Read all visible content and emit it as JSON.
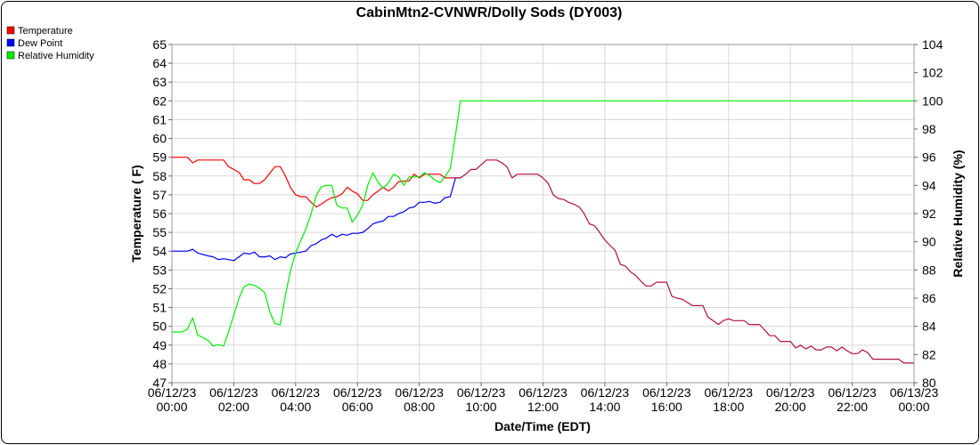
{
  "chart_data": {
    "type": "line",
    "title": "CabinMtn2-CVNWR/Dolly Sods (DY003)",
    "xlabel": "Date/Time (EDT)",
    "ylabel": "Temperature ( F)",
    "y2label": "Relative Humidity (%)",
    "ylim": [
      47,
      65
    ],
    "y2lim": [
      80,
      104
    ],
    "xlim": [
      0,
      24
    ],
    "x_ticks": [
      {
        "x": 0,
        "line1": "06/12/23",
        "line2": "00:00"
      },
      {
        "x": 2,
        "line1": "06/12/23",
        "line2": "02:00"
      },
      {
        "x": 4,
        "line1": "06/12/23",
        "line2": "04:00"
      },
      {
        "x": 6,
        "line1": "06/12/23",
        "line2": "06:00"
      },
      {
        "x": 8,
        "line1": "06/12/23",
        "line2": "08:00"
      },
      {
        "x": 10,
        "line1": "06/12/23",
        "line2": "10:00"
      },
      {
        "x": 12,
        "line1": "06/12/23",
        "line2": "12:00"
      },
      {
        "x": 14,
        "line1": "06/12/23",
        "line2": "14:00"
      },
      {
        "x": 16,
        "line1": "06/12/23",
        "line2": "16:00"
      },
      {
        "x": 18,
        "line1": "06/12/23",
        "line2": "18:00"
      },
      {
        "x": 20,
        "line1": "06/12/23",
        "line2": "20:00"
      },
      {
        "x": 22,
        "line1": "06/12/23",
        "line2": "22:00"
      },
      {
        "x": 24,
        "line1": "06/13/23",
        "line2": "00:00"
      }
    ],
    "y_ticks": [
      47,
      48,
      49,
      50,
      51,
      52,
      53,
      54,
      55,
      56,
      57,
      58,
      59,
      60,
      61,
      62,
      63,
      64,
      65
    ],
    "y2_ticks": [
      80,
      82,
      84,
      86,
      88,
      90,
      92,
      94,
      96,
      98,
      100,
      102,
      104
    ],
    "grid": true,
    "legend_position": "top-left",
    "series": [
      {
        "name": "Temperature",
        "color": "#ff0000",
        "axis": "left",
        "points": [
          [
            0,
            59
          ],
          [
            0.5,
            59
          ],
          [
            0.67,
            58.7
          ],
          [
            0.83,
            58.85
          ],
          [
            1.67,
            58.85
          ],
          [
            1.83,
            58.5
          ],
          [
            2.17,
            58.2
          ],
          [
            2.33,
            57.8
          ],
          [
            2.5,
            57.8
          ],
          [
            2.67,
            57.6
          ],
          [
            2.83,
            57.6
          ],
          [
            3,
            57.8
          ],
          [
            3.33,
            58.5
          ],
          [
            3.5,
            58.5
          ],
          [
            3.67,
            58
          ],
          [
            3.83,
            57.4
          ],
          [
            4,
            57
          ],
          [
            4.17,
            56.9
          ],
          [
            4.33,
            56.9
          ],
          [
            4.5,
            56.6
          ],
          [
            4.67,
            56.35
          ],
          [
            4.83,
            56.5
          ],
          [
            5,
            56.7
          ],
          [
            5.17,
            56.85
          ],
          [
            5.33,
            56.9
          ],
          [
            5.5,
            57.05
          ],
          [
            5.67,
            57.4
          ],
          [
            5.83,
            57.2
          ],
          [
            6,
            57.05
          ],
          [
            6.17,
            56.7
          ],
          [
            6.33,
            56.7
          ],
          [
            6.5,
            57
          ],
          [
            6.67,
            57.2
          ],
          [
            6.83,
            57.4
          ],
          [
            7,
            57.2
          ],
          [
            7.17,
            57.4
          ],
          [
            7.33,
            57.7
          ],
          [
            7.67,
            57.75
          ],
          [
            7.83,
            58.1
          ],
          [
            8,
            57.9
          ],
          [
            8.17,
            58.1
          ],
          [
            8.33,
            58.1
          ],
          [
            8.67,
            58.1
          ],
          [
            8.83,
            57.9
          ],
          [
            9,
            57.9
          ]
        ]
      },
      {
        "name": "Dew Point",
        "color": "#0000ff",
        "axis": "left",
        "points": [
          [
            0,
            54
          ],
          [
            0.5,
            54
          ],
          [
            0.67,
            54.1
          ],
          [
            0.83,
            53.9
          ],
          [
            1.17,
            53.75
          ],
          [
            1.33,
            53.7
          ],
          [
            1.5,
            53.55
          ],
          [
            1.67,
            53.6
          ],
          [
            1.83,
            53.55
          ],
          [
            2,
            53.5
          ],
          [
            2.17,
            53.7
          ],
          [
            2.33,
            53.9
          ],
          [
            2.5,
            53.85
          ],
          [
            2.67,
            53.95
          ],
          [
            2.83,
            53.7
          ],
          [
            3,
            53.7
          ],
          [
            3.17,
            53.75
          ],
          [
            3.33,
            53.55
          ],
          [
            3.5,
            53.7
          ],
          [
            3.67,
            53.65
          ],
          [
            3.83,
            53.85
          ],
          [
            4,
            53.9
          ],
          [
            4.17,
            53.95
          ],
          [
            4.33,
            54
          ],
          [
            4.5,
            54.3
          ],
          [
            4.67,
            54.4
          ],
          [
            4.83,
            54.6
          ],
          [
            5,
            54.7
          ],
          [
            5.17,
            54.9
          ],
          [
            5.33,
            54.75
          ],
          [
            5.5,
            54.9
          ],
          [
            5.67,
            54.85
          ],
          [
            5.83,
            54.95
          ],
          [
            6,
            54.95
          ],
          [
            6.17,
            55
          ],
          [
            6.33,
            55.2
          ],
          [
            6.5,
            55.45
          ],
          [
            6.67,
            55.55
          ],
          [
            6.83,
            55.6
          ],
          [
            7,
            55.85
          ],
          [
            7.17,
            55.85
          ],
          [
            7.33,
            56
          ],
          [
            7.5,
            56.1
          ],
          [
            7.67,
            56.3
          ],
          [
            7.83,
            56.35
          ],
          [
            8,
            56.6
          ],
          [
            8.17,
            56.6
          ],
          [
            8.33,
            56.65
          ],
          [
            8.5,
            56.55
          ],
          [
            8.67,
            56.6
          ],
          [
            8.83,
            56.85
          ],
          [
            9,
            56.9
          ],
          [
            9.17,
            57.9
          ],
          [
            9.33,
            57.9
          ]
        ]
      },
      {
        "name": "Relative Humidity",
        "color": "#00ee00",
        "axis": "right",
        "points": [
          [
            0,
            83.6
          ],
          [
            0.33,
            83.6
          ],
          [
            0.5,
            83.8
          ],
          [
            0.67,
            84.6
          ],
          [
            0.83,
            83.4
          ],
          [
            1,
            83.2
          ],
          [
            1.17,
            83
          ],
          [
            1.33,
            82.6
          ],
          [
            1.5,
            82.7
          ],
          [
            1.67,
            82.6
          ],
          [
            1.83,
            83.6
          ],
          [
            2,
            84.8
          ],
          [
            2.17,
            86
          ],
          [
            2.33,
            86.8
          ],
          [
            2.5,
            87
          ],
          [
            2.67,
            86.9
          ],
          [
            2.83,
            86.7
          ],
          [
            3,
            86.4
          ],
          [
            3.17,
            85
          ],
          [
            3.33,
            84.2
          ],
          [
            3.5,
            84.1
          ],
          [
            3.67,
            86.2
          ],
          [
            3.83,
            87.9
          ],
          [
            4,
            89.2
          ],
          [
            4.17,
            90.1
          ],
          [
            4.33,
            90.9
          ],
          [
            4.5,
            92
          ],
          [
            4.67,
            93.3
          ],
          [
            4.83,
            93.9
          ],
          [
            5,
            94
          ],
          [
            5.17,
            94
          ],
          [
            5.33,
            92.6
          ],
          [
            5.5,
            92.4
          ],
          [
            5.67,
            92.4
          ],
          [
            5.83,
            91.4
          ],
          [
            6,
            91.9
          ],
          [
            6.17,
            92.6
          ],
          [
            6.33,
            94
          ],
          [
            6.5,
            94.9
          ],
          [
            6.67,
            94.2
          ],
          [
            6.83,
            93.8
          ],
          [
            7,
            94.2
          ],
          [
            7.17,
            94.8
          ],
          [
            7.33,
            94.6
          ],
          [
            7.5,
            94
          ],
          [
            7.67,
            94.6
          ],
          [
            7.83,
            94.6
          ],
          [
            8,
            94.6
          ],
          [
            8.17,
            94.9
          ],
          [
            8.33,
            94.7
          ],
          [
            8.5,
            94.4
          ],
          [
            8.67,
            94.2
          ],
          [
            8.83,
            94.6
          ],
          [
            9,
            95.2
          ],
          [
            9.17,
            97.6
          ],
          [
            9.33,
            100
          ],
          [
            24,
            100
          ]
        ]
      },
      {
        "name": "",
        "color": "#b0103c",
        "axis": "left",
        "points": [
          [
            9,
            57.9
          ],
          [
            9.33,
            57.9
          ],
          [
            9.5,
            58.1
          ],
          [
            9.67,
            58.35
          ],
          [
            9.83,
            58.35
          ],
          [
            10,
            58.6
          ],
          [
            10.17,
            58.85
          ],
          [
            10.5,
            58.85
          ],
          [
            10.67,
            58.7
          ],
          [
            10.83,
            58.5
          ],
          [
            11,
            57.9
          ],
          [
            11.17,
            58.1
          ],
          [
            11.83,
            58.1
          ],
          [
            12,
            57.9
          ],
          [
            12.17,
            57.6
          ],
          [
            12.33,
            57
          ],
          [
            12.5,
            56.8
          ],
          [
            12.67,
            56.75
          ],
          [
            12.83,
            56.6
          ],
          [
            13,
            56.5
          ],
          [
            13.17,
            56.35
          ],
          [
            13.33,
            56
          ],
          [
            13.5,
            55.45
          ],
          [
            13.67,
            55.35
          ],
          [
            13.83,
            55
          ],
          [
            14,
            54.6
          ],
          [
            14.17,
            54.3
          ],
          [
            14.33,
            54.05
          ],
          [
            14.5,
            53.3
          ],
          [
            14.67,
            53.2
          ],
          [
            14.83,
            52.9
          ],
          [
            15,
            52.7
          ],
          [
            15.17,
            52.4
          ],
          [
            15.33,
            52.15
          ],
          [
            15.5,
            52.15
          ],
          [
            15.67,
            52.35
          ],
          [
            16,
            52.35
          ],
          [
            16.17,
            51.6
          ],
          [
            16.33,
            51.5
          ],
          [
            16.5,
            51.45
          ],
          [
            16.83,
            51.1
          ],
          [
            17.17,
            51.1
          ],
          [
            17.33,
            50.5
          ],
          [
            17.5,
            50.3
          ],
          [
            17.67,
            50.1
          ],
          [
            17.83,
            50.3
          ],
          [
            18,
            50.4
          ],
          [
            18.17,
            50.3
          ],
          [
            18.5,
            50.3
          ],
          [
            18.67,
            50.1
          ],
          [
            19,
            50.1
          ],
          [
            19.17,
            49.8
          ],
          [
            19.33,
            49.5
          ],
          [
            19.5,
            49.5
          ],
          [
            19.67,
            49.2
          ],
          [
            20,
            49.2
          ],
          [
            20.17,
            48.85
          ],
          [
            20.33,
            49
          ],
          [
            20.5,
            48.8
          ],
          [
            20.67,
            48.95
          ],
          [
            20.83,
            48.75
          ],
          [
            21,
            48.75
          ],
          [
            21.17,
            48.9
          ],
          [
            21.33,
            48.9
          ],
          [
            21.5,
            48.7
          ],
          [
            21.67,
            48.9
          ],
          [
            21.83,
            48.7
          ],
          [
            22,
            48.55
          ],
          [
            22.17,
            48.55
          ],
          [
            22.33,
            48.75
          ],
          [
            22.5,
            48.6
          ],
          [
            22.67,
            48.25
          ],
          [
            23.5,
            48.25
          ],
          [
            23.67,
            48.05
          ],
          [
            24,
            48.05
          ]
        ]
      }
    ]
  }
}
